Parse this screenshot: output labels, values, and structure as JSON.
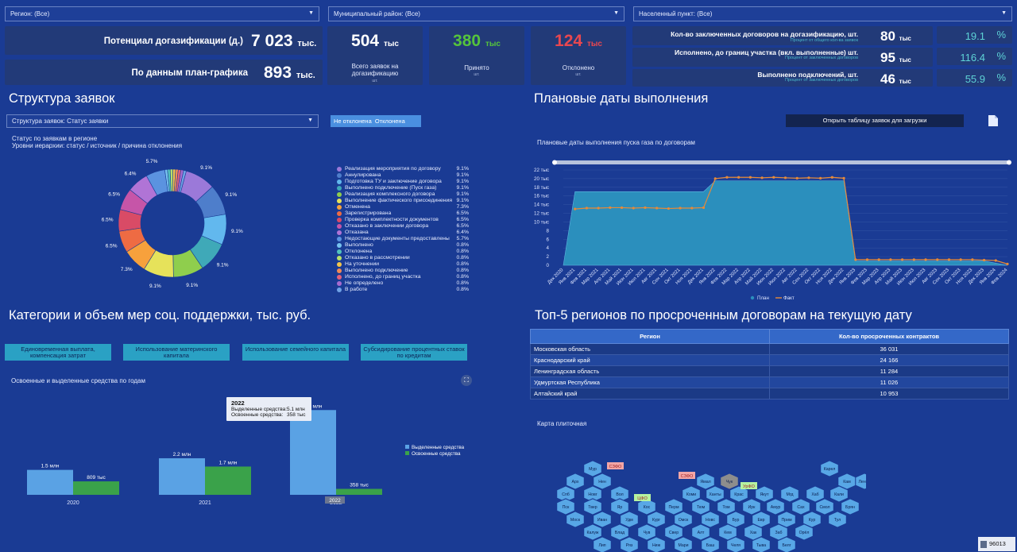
{
  "filters": {
    "region": "Регион: (Все)",
    "district": "Муниципальный район: (Все)",
    "settlement": "Населенный пункт: (Все)"
  },
  "kpi": {
    "potential_label": "Потенциал догазификации (д.)",
    "potential_value": "7 023",
    "potential_unit": "тыс.",
    "plan_label": "По данным план-графика",
    "plan_value": "893",
    "plan_unit": "тыс.",
    "total_value": "504",
    "total_unit": "тыс",
    "total_caption": "Всего заявок на догазификацию",
    "total_sub": "шт.",
    "accepted_value": "380",
    "accepted_unit": "тыс",
    "accepted_caption": "Принято",
    "accepted_sub": "шт.",
    "rejected_value": "124",
    "rejected_unit": "тыс",
    "rejected_caption": "Отклонено",
    "rejected_sub": "шт."
  },
  "right_kpi": [
    {
      "label": "Кол-во заключенных договоров на догазификацию, шт.",
      "sub": "Процент от общего кол-ва заявок",
      "value": "80",
      "unit": "тыс",
      "pct": "19.1",
      "pct_sym": "%"
    },
    {
      "label": "Исполнено, до границ участка (вкл. выполненные) шт.",
      "sub": "Процент от заключенных договоров",
      "value": "95",
      "unit": "тыс",
      "pct": "116.4",
      "pct_sym": "%"
    },
    {
      "label": "Выполнено подключений, шт.",
      "sub": "Процент от заключенных договоров",
      "value": "46",
      "unit": "тыс",
      "pct": "55.9",
      "pct_sym": "%"
    }
  ],
  "structure": {
    "title": "Структура заявок",
    "select": "Структура заявок: Статус заявки",
    "toggle_on": "Не отклонена",
    "toggle_off": "Отклонена",
    "chart_title": "Статус по заявкам в регионе",
    "chart_subtitle": "Уровни иерархии: статус / источник / причина отклонения"
  },
  "plan": {
    "title": "Плановые даты выполнения",
    "open_btn": "Открыть таблицу заявок для загрузки",
    "chart_title": "Плановые даты выполнения пуска газа по договорам"
  },
  "categories": {
    "title": "Категории и объем мер соц. поддержки, тыс. руб.",
    "buttons": [
      "Единовременная выплата, компенсация затрат",
      "Использование материнского капитала",
      "Использование семейного капитала",
      "Субсидирование процентных ставок по кредитам"
    ],
    "chart_title": "Освоенные и выделенные средства по годам",
    "tooltip": {
      "year": "2022",
      "alloc_label": "Выделенные средства:",
      "alloc_value": "5.1 млн",
      "spent_label": "Освоенные средства:",
      "spent_value": "358 тыс"
    }
  },
  "top5": {
    "title": "Топ-5 регионов по просроченным договорам на текущую дату",
    "col_region": "Регион",
    "col_count": "Кол-во просроченных контрактов",
    "rows": [
      {
        "region": "Московская область",
        "count": "36 031"
      },
      {
        "region": "Краснодарский край",
        "count": "24 166"
      },
      {
        "region": "Ленинградская область",
        "count": "11 284"
      },
      {
        "region": "Удмуртская Республика",
        "count": "11 026"
      },
      {
        "region": "Алтайский край",
        "count": "10 953"
      }
    ]
  },
  "map": {
    "title": "Карта плиточная",
    "badge": "96013",
    "districts": [
      "СЗФО",
      "СЗФО",
      "ЦФО",
      "УрФО"
    ],
    "hexes": [
      "Мур",
      "Карел",
      "Арх",
      "Нен",
      "Ямал",
      "Чук",
      "Кам",
      "Ленин",
      "Спб",
      "Новг",
      "Вол",
      "Коми",
      "Ханты",
      "Крас",
      "Якут",
      "Мгд",
      "Хаб",
      "Кали",
      "Пск",
      "Твер",
      "Яр",
      "Кос",
      "Перм",
      "Тюм",
      "Том",
      "Ирк",
      "Амур",
      "Сах",
      "Смол",
      "Брян",
      "Моск",
      "Иван",
      "Удм",
      "Кург",
      "Омск",
      "Новс",
      "Бур",
      "Евр",
      "Прим",
      "Кур",
      "Тул",
      "Калуж",
      "Влад",
      "Чув",
      "Свер",
      "Алт",
      "Кем",
      "Хак",
      "Заб",
      "Орёл",
      "Лип",
      "Ряз",
      "Ниж",
      "Мари",
      "Баш",
      "Челя",
      "Тыва",
      "Белг",
      "Вор",
      "Тамб",
      "Пенз",
      "Морд",
      "Тат",
      "Орен"
    ]
  },
  "chart_data": [
    {
      "type": "pie",
      "title": "Статус по заявкам в регионе",
      "categories": [
        "Реализация мероприятия по договору",
        "Аннулирована",
        "Подготовка ТУ и заключение договора",
        "Выполнено подключение (Пуск газа)",
        "Реализация комплексного договора",
        "Выполнение фактического присоединения",
        "Отменена",
        "Зарегистрирована",
        "Проверка комплектности документов",
        "Отказано в заключении договора",
        "Отказана",
        "Недостающие документы предоставлены",
        "Выполнено",
        "Отклонена",
        "Отказано в рассмотрении",
        "На уточнении",
        "Выполнено подключение",
        "Исполнено, до границ участка",
        "Не определено",
        "В работе"
      ],
      "values": [
        9.1,
        9.1,
        9.1,
        9.1,
        9.1,
        9.1,
        7.3,
        6.5,
        6.5,
        6.5,
        6.4,
        5.7,
        0.8,
        0.8,
        0.8,
        0.8,
        0.8,
        0.8,
        0.8,
        0.8
      ],
      "value_labels": [
        "9.1%",
        "9.1%",
        "9.1%",
        "9.1%",
        "9.1%",
        "9.1%",
        "7.3%",
        "6.5%",
        "6.5%",
        "6.5%",
        "6.4%",
        "5.7%",
        "0.8%",
        "0.8%",
        "0.8%",
        "0.8%",
        "0.8%",
        "0.8%",
        "0.8%",
        "0.8%"
      ],
      "colors": [
        "#9b79d9",
        "#4e7ecb",
        "#62b8ee",
        "#3fa9b8",
        "#8fce4d",
        "#e6e25a",
        "#f7a13c",
        "#ee6b43",
        "#d94b66",
        "#c655a8",
        "#b074d6",
        "#5b93e0",
        "#77c3f0",
        "#52c2bd",
        "#b8e06a",
        "#f3c64b",
        "#f08a56",
        "#e4607a",
        "#a86bd0",
        "#6fa2e6"
      ]
    },
    {
      "type": "area",
      "title": "Плановые даты выполнения пуска газа по договорам",
      "categories": [
        "Дек 2020",
        "Янв 2021",
        "Фев 2021",
        "Мар 2021",
        "Апр 2021",
        "Май 2021",
        "Июн 2021",
        "Июл 2021",
        "Авг 2021",
        "Сен 2021",
        "Окт 2021",
        "Ноя 2021",
        "Дек 2021",
        "Янв 2022",
        "Фев 2022",
        "Мар 2022",
        "Апр 2022",
        "Май 2022",
        "Июн 2022",
        "Июл 2022",
        "Авг 2022",
        "Сен 2022",
        "Окт 2022",
        "Ноя 2022",
        "Дек 2022",
        "Янв 2023",
        "Фев 2023",
        "Мар 2023",
        "Апр 2023",
        "Май 2023",
        "Июн 2023",
        "Июл 2023",
        "Авг 2023",
        "Сен 2023",
        "Окт 2023",
        "Ноя 2023",
        "Дек 2023",
        "Янв 2024",
        "Фев 2024"
      ],
      "series": [
        {
          "name": "План",
          "values": [
            0,
            17,
            17,
            17,
            17,
            17,
            17,
            17,
            17,
            17,
            17,
            17,
            17,
            19.5,
            19.5,
            19.5,
            19.5,
            19.5,
            19.5,
            19.5,
            19.5,
            19.5,
            19.5,
            19.5,
            19.5,
            1,
            1,
            1,
            1,
            1,
            1,
            1,
            1,
            1,
            1,
            1,
            1,
            0.5,
            0
          ]
        },
        {
          "name": "Факт",
          "values": [
            null,
            13,
            13.2,
            13.2,
            13.3,
            13.3,
            13.2,
            13.3,
            13.2,
            13.1,
            13.2,
            13.2,
            13.3,
            20,
            20.3,
            20.3,
            20.3,
            20.2,
            20.3,
            20.2,
            20.1,
            20.2,
            20.1,
            20.3,
            20.1,
            1.3,
            1.3,
            1.3,
            1.3,
            1.3,
            1.3,
            1.3,
            1.3,
            1.3,
            1.3,
            1.3,
            1.2,
            1.1,
            0.3
          ]
        }
      ],
      "yticks": [
        "0",
        "2",
        "4",
        "6",
        "8",
        "10 тыс",
        "12 тыс",
        "14 тыс",
        "16 тыс",
        "18 тыс",
        "20 тыс",
        "22 тыс"
      ],
      "ylim": [
        0,
        22
      ],
      "legend": [
        "План",
        "Факт"
      ]
    },
    {
      "type": "bar",
      "title": "Освоенные и выделенные средства по годам",
      "categories": [
        "2020",
        "2021",
        "2022"
      ],
      "series": [
        {
          "name": "Выделенные средства",
          "values": [
            1.5,
            2.2,
            5.1
          ],
          "labels": [
            "1.5 млн",
            "2.2 млн",
            "5.1 млн"
          ]
        },
        {
          "name": "Освоенные средства",
          "values": [
            0.809,
            1.7,
            0.358
          ],
          "labels": [
            "809 тыс",
            "1.7 млн",
            "358 тыс"
          ]
        }
      ],
      "ylim": [
        0,
        5.4
      ]
    }
  ]
}
